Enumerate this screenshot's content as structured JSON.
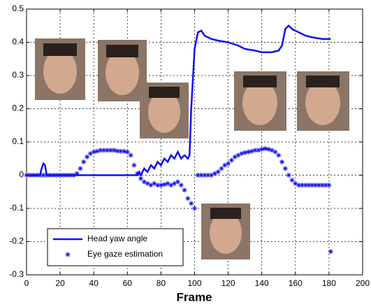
{
  "chart_data": {
    "type": "line",
    "xlabel": "Frame",
    "xlim": [
      0,
      200
    ],
    "xticks": [
      0,
      20,
      40,
      60,
      80,
      100,
      120,
      140,
      160,
      180,
      200
    ],
    "ylim": [
      -0.3,
      0.5
    ],
    "yticks": [
      0.5,
      0.4,
      0.3,
      0.2,
      0.1,
      0,
      -0.1,
      -0.2,
      -0.3
    ],
    "grid": true,
    "legend": "lower left",
    "series": [
      {
        "name": "Head yaw angle",
        "color": "#1010f0",
        "marker": "line",
        "x": [
          0,
          8,
          9,
          10,
          11,
          12,
          66,
          67,
          68,
          70,
          72,
          74,
          76,
          78,
          80,
          82,
          84,
          86,
          88,
          90,
          92,
          94,
          96,
          97,
          98,
          100,
          102,
          104,
          106,
          110,
          114,
          120,
          126,
          130,
          136,
          140,
          146,
          150,
          152,
          154,
          156,
          158,
          162,
          166,
          170,
          176,
          181
        ],
        "values": [
          0,
          0,
          0.02,
          0.035,
          0.03,
          0,
          0,
          0.01,
          0,
          0.02,
          0.01,
          0.03,
          0.02,
          0.04,
          0.03,
          0.05,
          0.04,
          0.06,
          0.05,
          0.07,
          0.05,
          0.06,
          0.05,
          0.06,
          0.2,
          0.38,
          0.43,
          0.435,
          0.42,
          0.41,
          0.405,
          0.4,
          0.39,
          0.38,
          0.375,
          0.37,
          0.37,
          0.375,
          0.39,
          0.44,
          0.45,
          0.44,
          0.43,
          0.42,
          0.415,
          0.41,
          0.41
        ]
      },
      {
        "name": "Eye gaze estimation",
        "color": "#1010f0",
        "marker": "star",
        "x": [
          0,
          2,
          4,
          6,
          8,
          10,
          12,
          14,
          16,
          18,
          20,
          22,
          24,
          26,
          28,
          30,
          32,
          34,
          36,
          38,
          40,
          42,
          44,
          46,
          48,
          50,
          52,
          54,
          56,
          58,
          60,
          62,
          64,
          66,
          68,
          70,
          72,
          74,
          76,
          78,
          80,
          82,
          84,
          86,
          88,
          90,
          92,
          94,
          96,
          98,
          100,
          102,
          104,
          106,
          108,
          110,
          112,
          114,
          116,
          118,
          120,
          122,
          124,
          126,
          128,
          130,
          132,
          134,
          136,
          138,
          140,
          142,
          144,
          146,
          148,
          150,
          152,
          154,
          156,
          158,
          160,
          162,
          164,
          166,
          168,
          170,
          172,
          174,
          176,
          178,
          180,
          181
        ],
        "values": [
          0,
          0,
          0,
          0,
          0,
          0,
          0,
          0,
          0,
          0,
          0,
          0,
          0,
          0,
          0,
          0.005,
          0.02,
          0.04,
          0.055,
          0.065,
          0.07,
          0.072,
          0.075,
          0.075,
          0.075,
          0.075,
          0.075,
          0.073,
          0.072,
          0.072,
          0.07,
          0.06,
          0.03,
          0.005,
          -0.01,
          -0.02,
          -0.025,
          -0.03,
          -0.025,
          -0.03,
          -0.03,
          -0.028,
          -0.025,
          -0.03,
          -0.025,
          -0.02,
          -0.03,
          -0.045,
          -0.07,
          -0.085,
          -0.1,
          0,
          0,
          0,
          0,
          0,
          0.005,
          0.01,
          0.02,
          0.03,
          0.035,
          0.045,
          0.055,
          0.06,
          0.065,
          0.068,
          0.07,
          0.072,
          0.075,
          0.075,
          0.078,
          0.08,
          0.078,
          0.075,
          0.07,
          0.06,
          0.04,
          0.02,
          0,
          -0.015,
          -0.025,
          -0.03,
          -0.03,
          -0.03,
          -0.03,
          -0.03,
          -0.03,
          -0.03,
          -0.03,
          -0.03,
          -0.03,
          -0.23
        ]
      }
    ]
  }
}
